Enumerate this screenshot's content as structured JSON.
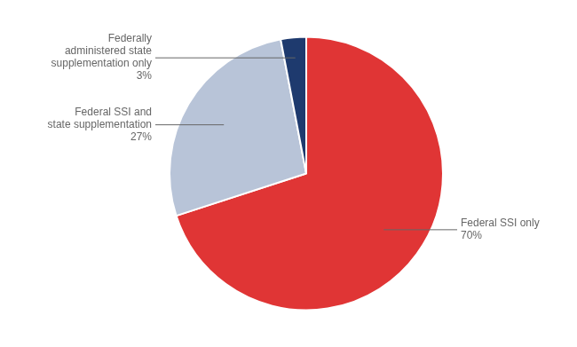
{
  "chart_data": {
    "type": "pie",
    "categories": [
      "Federal SSI only",
      "Federal SSI and\nstate supplementation",
      "Federally\nadministered state\nsupplementation only"
    ],
    "values": [
      70,
      27,
      3
    ],
    "value_labels": [
      "70%",
      "27%",
      "3%"
    ],
    "colors": [
      "#e03535",
      "#b8c4d8",
      "#1e3a6e"
    ],
    "data_labels": true,
    "legend": false
  }
}
